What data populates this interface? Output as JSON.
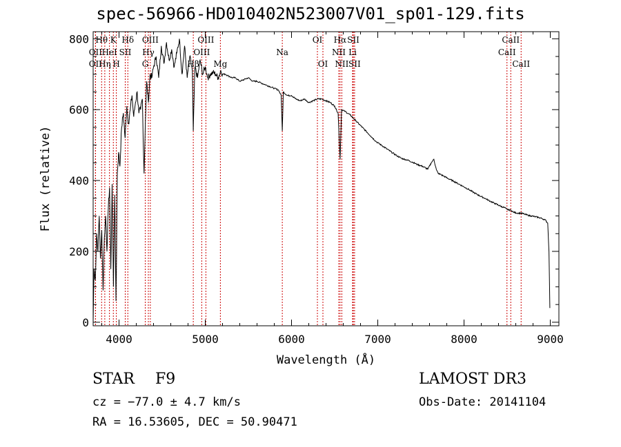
{
  "title": "spec-56966-HD010402N523007V01_sp01-129.fits",
  "object": {
    "class": "STAR",
    "subclass": "F9"
  },
  "redshift_text": "cz = −77.0 ± 4.7 km/s",
  "coords_text": "RA =  16.53605, DEC =  50.90471",
  "survey": "LAMOST DR3",
  "obs_date": "Obs-Date: 20141104",
  "colors": {
    "spectrum": "#000000",
    "lines": "#cc0000",
    "axes": "#000000"
  },
  "chart_data": {
    "type": "line",
    "title": "spec-56966-HD010402N523007V01_sp01-129.fits",
    "xlabel": "Wavelength (Å)",
    "ylabel": "Flux (relative)",
    "xlim": [
      3700,
      9100
    ],
    "ylim": [
      -10,
      820
    ],
    "xticks": [
      4000,
      5000,
      6000,
      7000,
      8000,
      9000
    ],
    "yticks": [
      0,
      200,
      400,
      600,
      800
    ],
    "spectrum": {
      "x": [
        3700,
        3710,
        3725,
        3740,
        3755,
        3770,
        3785,
        3800,
        3815,
        3830,
        3845,
        3860,
        3875,
        3890,
        3905,
        3920,
        3935,
        3950,
        3965,
        3980,
        3995,
        4010,
        4030,
        4050,
        4070,
        4090,
        4110,
        4130,
        4150,
        4170,
        4190,
        4210,
        4230,
        4250,
        4270,
        4290,
        4305,
        4320,
        4340,
        4360,
        4380,
        4400,
        4430,
        4460,
        4490,
        4520,
        4550,
        4580,
        4610,
        4640,
        4670,
        4700,
        4730,
        4760,
        4790,
        4820,
        4850,
        4861,
        4880,
        4910,
        4940,
        4970,
        5000,
        5030,
        5060,
        5090,
        5120,
        5150,
        5180,
        5200,
        5230,
        5270,
        5310,
        5350,
        5400,
        5450,
        5500,
        5550,
        5600,
        5650,
        5700,
        5750,
        5800,
        5850,
        5880,
        5893,
        5905,
        5950,
        6000,
        6050,
        6100,
        6150,
        6200,
        6250,
        6300,
        6350,
        6400,
        6450,
        6500,
        6540,
        6563,
        6580,
        6620,
        6680,
        6740,
        6800,
        6860,
        6920,
        6980,
        7040,
        7100,
        7160,
        7220,
        7280,
        7340,
        7400,
        7460,
        7520,
        7580,
        7620,
        7650,
        7680,
        7700,
        7720,
        7760,
        7820,
        7880,
        7940,
        8000,
        8060,
        8120,
        8180,
        8240,
        8300,
        8360,
        8420,
        8480,
        8500,
        8542,
        8580,
        8620,
        8662,
        8700,
        8740,
        8780,
        8820,
        8860,
        8900,
        8940,
        8970,
        8985,
        8995
      ],
      "y": [
        0,
        150,
        120,
        250,
        200,
        300,
        180,
        260,
        90,
        240,
        300,
        200,
        320,
        380,
        150,
        390,
        100,
        360,
        60,
        420,
        480,
        440,
        550,
        590,
        520,
        610,
        560,
        600,
        640,
        580,
        620,
        650,
        590,
        600,
        630,
        420,
        560,
        680,
        620,
        700,
        690,
        720,
        750,
        690,
        780,
        730,
        790,
        740,
        770,
        720,
        760,
        800,
        700,
        780,
        690,
        750,
        710,
        540,
        720,
        690,
        740,
        700,
        720,
        690,
        700,
        705,
        700,
        690,
        710,
        700,
        700,
        695,
        690,
        690,
        680,
        685,
        690,
        680,
        680,
        675,
        670,
        665,
        660,
        655,
        640,
        540,
        650,
        640,
        640,
        630,
        625,
        630,
        620,
        625,
        630,
        630,
        625,
        620,
        610,
        590,
        460,
        600,
        595,
        585,
        570,
        555,
        540,
        525,
        510,
        500,
        490,
        480,
        470,
        462,
        458,
        452,
        445,
        440,
        432,
        450,
        460,
        430,
        420,
        418,
        413,
        405,
        398,
        390,
        382,
        374,
        365,
        357,
        350,
        342,
        335,
        328,
        322,
        318,
        316,
        310,
        308,
        308,
        305,
        302,
        300,
        298,
        296,
        293,
        289,
        280,
        200,
        40
      ]
    },
    "lines": [
      {
        "name": "Hθ",
        "wavelength": 3798,
        "row": 0
      },
      {
        "name": "OII",
        "wavelength": 3727,
        "row": 1
      },
      {
        "name": "OII",
        "wavelength": 3727,
        "row": 2
      },
      {
        "name": "Hη",
        "wavelength": 3835,
        "row": 2
      },
      {
        "name": "K",
        "wavelength": 3934,
        "row": 0
      },
      {
        "name": "HeI",
        "wavelength": 3889,
        "row": 1
      },
      {
        "name": "H",
        "wavelength": 3969,
        "row": 2
      },
      {
        "name": "Hδ",
        "wavelength": 4102,
        "row": 0
      },
      {
        "name": "SII",
        "wavelength": 4072,
        "row": 1
      },
      {
        "name": "OIII",
        "wavelength": 4363,
        "row": 0
      },
      {
        "name": "Hγ",
        "wavelength": 4340,
        "row": 1
      },
      {
        "name": "G",
        "wavelength": 4304,
        "row": 2
      },
      {
        "name": "OIII",
        "wavelength": 5007,
        "row": 0
      },
      {
        "name": "OIII",
        "wavelength": 4959,
        "row": 1
      },
      {
        "name": "Hβ",
        "wavelength": 4861,
        "row": 2
      },
      {
        "name": "Mg",
        "wavelength": 5175,
        "row": 2
      },
      {
        "name": "Na",
        "wavelength": 5893,
        "row": 1
      },
      {
        "name": "OI",
        "wavelength": 6300,
        "row": 0
      },
      {
        "name": "OI",
        "wavelength": 6364,
        "row": 2
      },
      {
        "name": "Hα",
        "wavelength": 6563,
        "row": 0
      },
      {
        "name": "NII",
        "wavelength": 6548,
        "row": 1
      },
      {
        "name": "NII",
        "wavelength": 6583,
        "row": 2
      },
      {
        "name": "SII",
        "wavelength": 6716,
        "row": 0
      },
      {
        "name": "Li",
        "wavelength": 6708,
        "row": 1
      },
      {
        "name": "SII",
        "wavelength": 6731,
        "row": 2
      },
      {
        "name": "CaII",
        "wavelength": 8542,
        "row": 0
      },
      {
        "name": "CaII",
        "wavelength": 8498,
        "row": 1
      },
      {
        "name": "CaII",
        "wavelength": 8662,
        "row": 2
      }
    ]
  }
}
